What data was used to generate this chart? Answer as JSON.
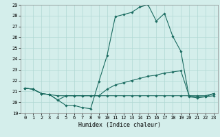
{
  "xlabel": "Humidex (Indice chaleur)",
  "bg_color": "#d4eeeb",
  "grid_color": "#b0d8d4",
  "line_color": "#1a6b60",
  "xlim": [
    -0.5,
    23.5
  ],
  "ylim": [
    19,
    29
  ],
  "xticks": [
    0,
    1,
    2,
    3,
    4,
    5,
    6,
    7,
    8,
    9,
    10,
    11,
    12,
    13,
    14,
    15,
    16,
    17,
    18,
    19,
    20,
    21,
    22,
    23
  ],
  "yticks": [
    19,
    20,
    21,
    22,
    23,
    24,
    25,
    26,
    27,
    28,
    29
  ],
  "series": [
    [
      21.3,
      21.2,
      20.8,
      20.7,
      20.2,
      19.7,
      19.7,
      19.5,
      19.4,
      21.9,
      24.3,
      27.9,
      28.1,
      28.3,
      28.8,
      29.0,
      27.5,
      28.2,
      26.1,
      24.7,
      20.5,
      20.4,
      20.5,
      20.8
    ],
    [
      21.3,
      21.2,
      20.8,
      20.7,
      20.2,
      20.6,
      20.6,
      20.6,
      20.6,
      20.6,
      21.2,
      21.6,
      21.8,
      22.0,
      22.2,
      22.4,
      22.5,
      22.7,
      22.8,
      22.9,
      20.6,
      20.5,
      20.5,
      20.6
    ],
    [
      21.3,
      21.2,
      20.8,
      20.7,
      20.6,
      20.6,
      20.6,
      20.6,
      20.6,
      20.6,
      20.6,
      20.6,
      20.6,
      20.6,
      20.6,
      20.6,
      20.6,
      20.6,
      20.6,
      20.6,
      20.6,
      20.6,
      20.6,
      20.8
    ]
  ]
}
